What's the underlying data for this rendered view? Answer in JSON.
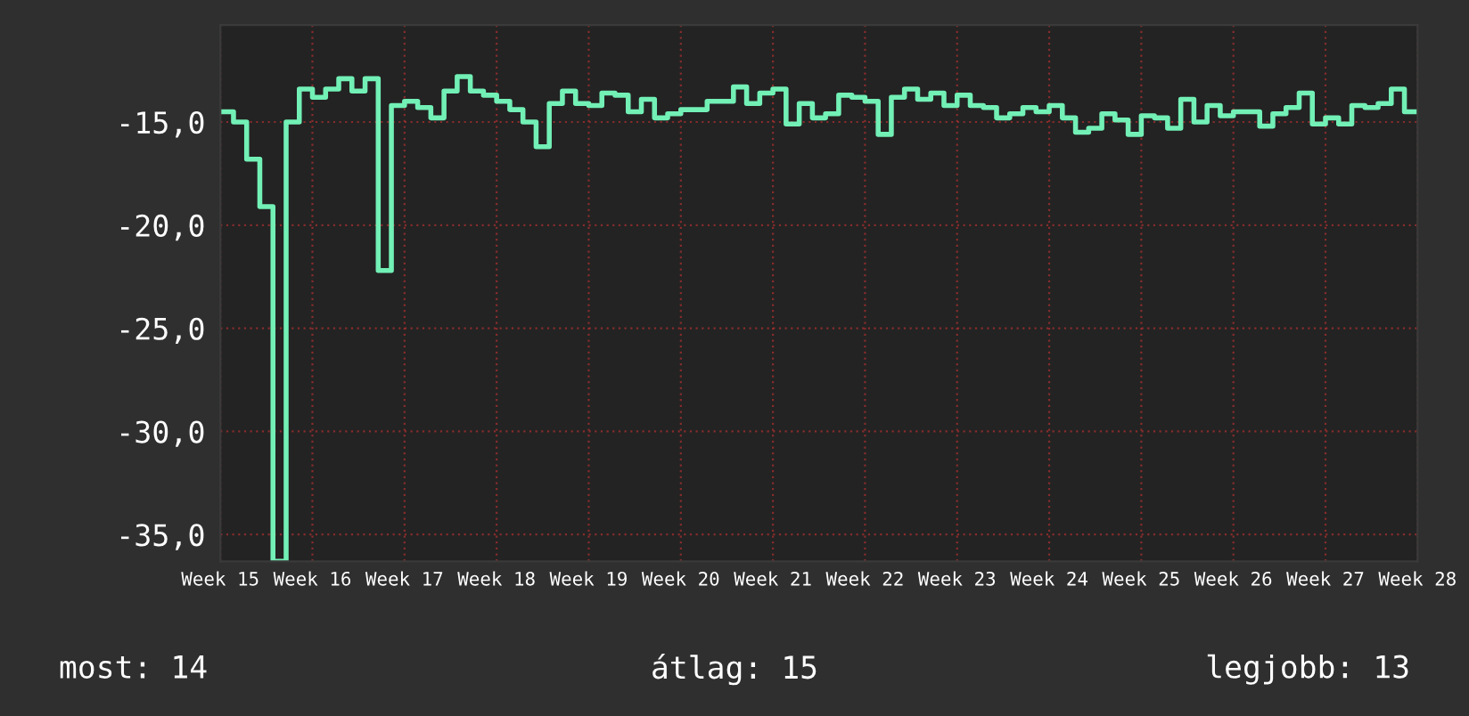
{
  "chart_data": {
    "type": "step",
    "categories": [
      "Week 15",
      null,
      null,
      null,
      null,
      null,
      null,
      "Week 16",
      null,
      null,
      null,
      null,
      null,
      null,
      "Week 17",
      null,
      null,
      null,
      null,
      null,
      null,
      "Week 18",
      null,
      null,
      null,
      null,
      null,
      null,
      "Week 19",
      null,
      null,
      null,
      null,
      null,
      null,
      "Week 20",
      null,
      null,
      null,
      null,
      null,
      null,
      "Week 21",
      null,
      null,
      null,
      null,
      null,
      null,
      "Week 22",
      null,
      null,
      null,
      null,
      null,
      null,
      "Week 23",
      null,
      null,
      null,
      null,
      null,
      null,
      "Week 24",
      null,
      null,
      null,
      null,
      null,
      null,
      "Week 25",
      null,
      null,
      null,
      null,
      null,
      null,
      "Week 26",
      null,
      null,
      null,
      null,
      null,
      null,
      "Week 27",
      null,
      null,
      null,
      null,
      null,
      null,
      "Week 28"
    ],
    "series": [
      {
        "color": "#72f0b6",
        "values": [
          -14.5,
          -15.0,
          -16.8,
          -19.1,
          -36.3,
          -15.0,
          -13.4,
          -13.8,
          -13.4,
          -12.9,
          -13.5,
          -12.9,
          -22.2,
          -14.2,
          -14.0,
          -14.3,
          -14.8,
          -13.5,
          -12.8,
          -13.5,
          -13.7,
          -14.0,
          -14.4,
          -15.0,
          -16.2,
          -14.1,
          -13.5,
          -14.1,
          -14.2,
          -13.6,
          -13.7,
          -14.5,
          -13.9,
          -14.8,
          -14.6,
          -14.4,
          -14.4,
          -14.0,
          -14.0,
          -13.3,
          -14.1,
          -13.6,
          -13.4,
          -15.1,
          -14.1,
          -14.8,
          -14.6,
          -13.7,
          -13.8,
          -14.0,
          -15.6,
          -13.8,
          -13.4,
          -13.9,
          -13.6,
          -14.2,
          -13.7,
          -14.2,
          -14.3,
          -14.8,
          -14.6,
          -14.3,
          -14.5,
          -14.2,
          -14.8,
          -15.5,
          -15.3,
          -14.6,
          -14.9,
          -15.6,
          -14.7,
          -14.8,
          -15.3,
          -13.9,
          -15.0,
          -14.2,
          -14.7,
          -14.5,
          -14.5,
          -15.2,
          -14.6,
          -14.3,
          -13.6,
          -15.1,
          -14.8,
          -15.1,
          -14.2,
          -14.3,
          -14.1,
          -13.4,
          -14.5,
          -14.5
        ]
      }
    ],
    "ylim": [
      -36.3,
      -10.3
    ],
    "yticks": [
      {
        "value": -15,
        "label": "-15,0"
      },
      {
        "value": -20,
        "label": "-20,0"
      },
      {
        "value": -25,
        "label": "-25,0"
      },
      {
        "value": -30,
        "label": "-30,0"
      },
      {
        "value": -35,
        "label": "-35,0"
      }
    ],
    "grid": true,
    "annotations": [
      "most: 14",
      "átlag: 15",
      "legjobb: 13"
    ]
  }
}
